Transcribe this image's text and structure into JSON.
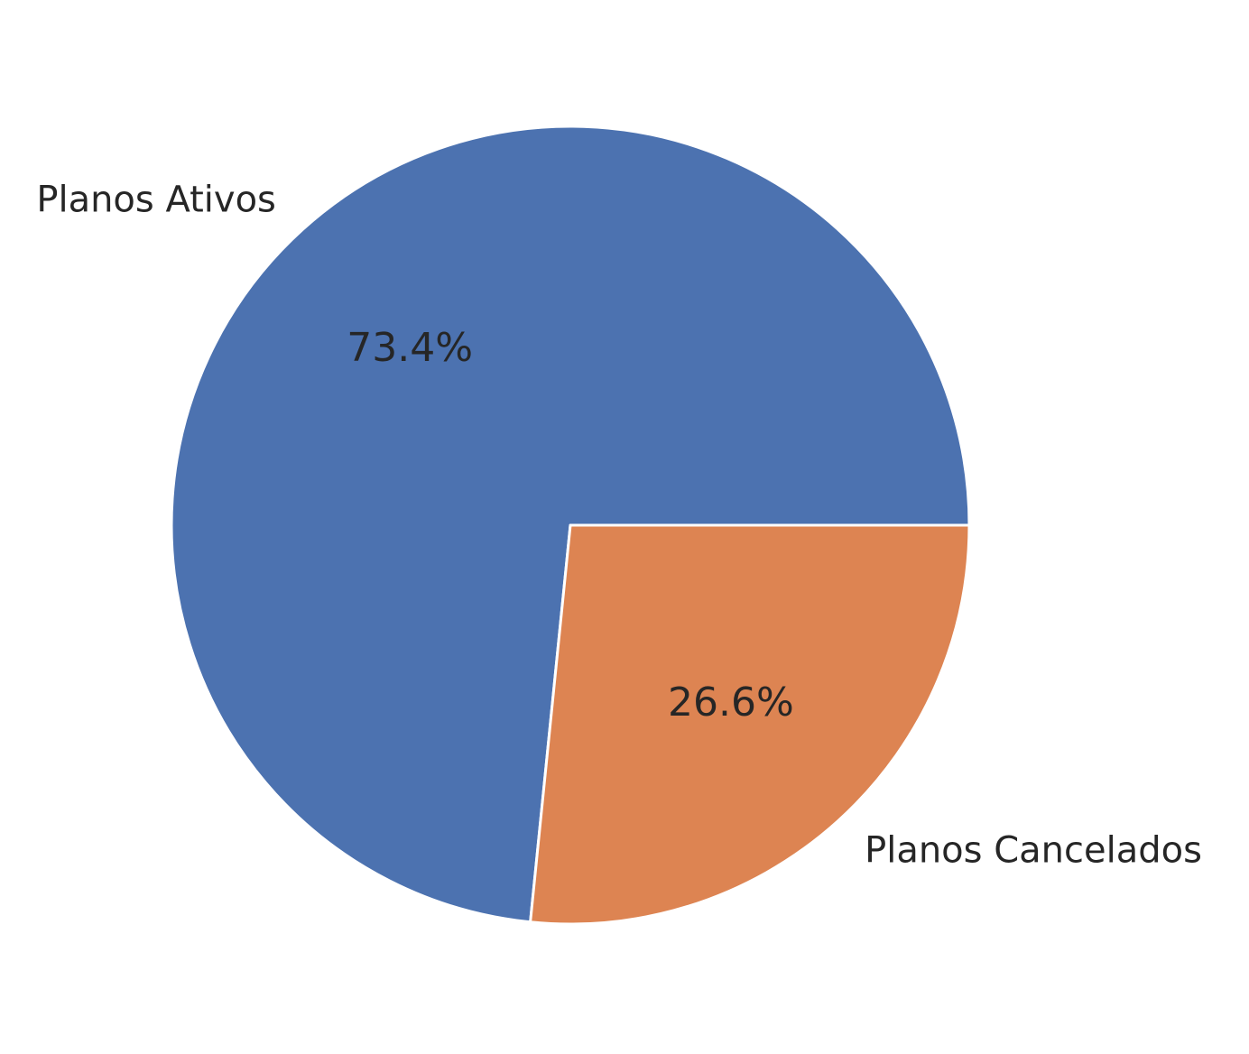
{
  "chart_data": {
    "type": "pie",
    "title": "",
    "slices": [
      {
        "label": "Planos Ativos",
        "value": 73.4,
        "pct_label": "73.4%",
        "color": "#4c72b0"
      },
      {
        "label": "Planos Cancelados",
        "value": 26.6,
        "pct_label": "26.6%",
        "color": "#dd8452"
      }
    ],
    "start_angle_deg": 0,
    "direction": "counterclockwise",
    "edge_color": "#ffffff",
    "legend": "none"
  }
}
